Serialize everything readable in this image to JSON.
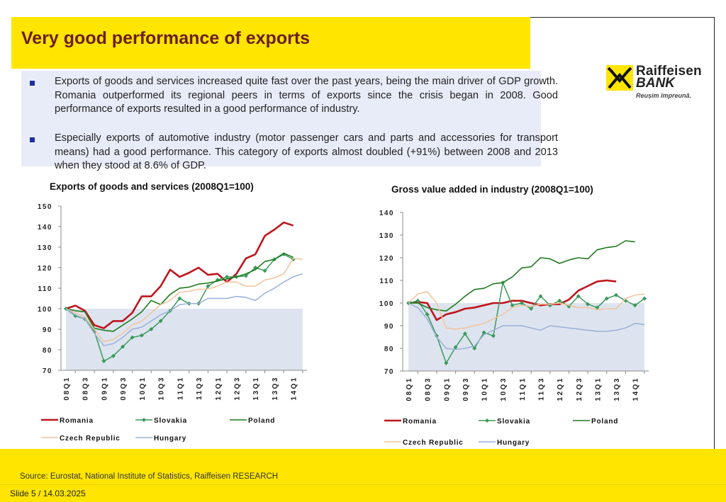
{
  "title": "Very good performance of exports",
  "bullets": [
    "Exports of goods and services increased quite fast over the past years, being the main driver of GDP growth. Romania outperformed its regional peers in terms of exports since the crisis began in 2008. Good performance of exports resulted in a good performance of industry.",
    "Especially exports of automotive industry (motor passenger cars and parts and accessories for transport means) had a good performance. This category of exports almost doubled (+91%) between 2008 and 2013 when they stood at 8.6% of GDP."
  ],
  "logo": {
    "line1": "Raiffeisen",
    "line2": "BANK",
    "tagline": "Reușim împreună."
  },
  "footer": {
    "source": "Source: Eurostat, National Institute of Statistics, Raiffeisen RESEARCH",
    "slide": "Slide 5 / 14.03.2025"
  },
  "colors": {
    "Romania": "#c0141c",
    "Slovakia": "#3a9a5a",
    "Poland": "#1f7a1f",
    "Czech Republic": "#f3c39b",
    "Hungary": "#9ab0d8",
    "shade": "#dde4ef",
    "title_bar": "#ffe500"
  },
  "chart_data": [
    {
      "type": "line",
      "title": "Exports of goods and services (2008Q1=100)",
      "xlabel": "",
      "ylabel": "",
      "ylim": [
        70,
        150
      ],
      "yticks": [
        "150",
        "140",
        "130",
        "120",
        "110",
        "100",
        "90",
        "80",
        "70"
      ],
      "x": [
        "08Q1",
        "08Q2",
        "08Q3",
        "08Q4",
        "09Q1",
        "09Q2",
        "09Q3",
        "09Q4",
        "10Q1",
        "10Q2",
        "10Q3",
        "10Q4",
        "11Q1",
        "11Q2",
        "11Q3",
        "11Q4",
        "12Q1",
        "12Q2",
        "12Q3",
        "12Q4",
        "13Q1",
        "13Q2",
        "13Q3",
        "13Q4",
        "14Q1",
        "14Q2"
      ],
      "xticks": [
        "08Q1",
        "08Q3",
        "09Q1",
        "09Q3",
        "10Q1",
        "10Q3",
        "11Q1",
        "11Q3",
        "12Q1",
        "12Q3",
        "13Q1",
        "13Q3",
        "14Q1"
      ],
      "shade_value": 100,
      "legend_rows": [
        [
          "Romania",
          "Slovakia",
          "Poland"
        ],
        [
          "Czech Republic",
          "Hungary"
        ]
      ],
      "series": [
        {
          "name": "Romania",
          "values": [
            100,
            101.5,
            99,
            92,
            90.5,
            94,
            94,
            98,
            106,
            106,
            111,
            119,
            115.5,
            117.5,
            120,
            116.5,
            117,
            113,
            117,
            124.5,
            126.5,
            135.5,
            138.5,
            142,
            140.5,
            null
          ]
        },
        {
          "name": "Slovakia",
          "marker": true,
          "values": [
            100,
            96.5,
            95,
            89,
            74.5,
            77,
            81.5,
            86,
            87,
            90,
            94,
            99,
            105,
            102.5,
            102.5,
            111,
            114,
            115.5,
            115.5,
            116,
            120,
            118.5,
            124,
            126.5,
            124,
            null
          ]
        },
        {
          "name": "Poland",
          "values": [
            100,
            99,
            98.5,
            90.5,
            89.5,
            89,
            92,
            95,
            98.5,
            104,
            102,
            107,
            110,
            110.5,
            112,
            112.5,
            113.5,
            114.5,
            115.5,
            117,
            119,
            123,
            124,
            127,
            125,
            null
          ]
        },
        {
          "name": "Czech Republic",
          "values": [
            100,
            98,
            96,
            90,
            84,
            85,
            88,
            92,
            94,
            98,
            102,
            104,
            108,
            108.5,
            109.5,
            109.5,
            111,
            113,
            113,
            111,
            111,
            114,
            115,
            117,
            124.5,
            124
          ]
        },
        {
          "name": "Hungary",
          "values": [
            100,
            97,
            95,
            88,
            82,
            83,
            86,
            90,
            91,
            94,
            97,
            99,
            102,
            102.5,
            102.5,
            105,
            105,
            105,
            106,
            105.5,
            104,
            107.5,
            110,
            113,
            115.5,
            117
          ]
        }
      ]
    },
    {
      "type": "line",
      "title": "Gross value added in industry (2008Q1=100)",
      "xlabel": "",
      "ylabel": "",
      "ylim": [
        70,
        140
      ],
      "yticks": [
        "140",
        "130",
        "120",
        "110",
        "100",
        "90",
        "80",
        "70"
      ],
      "x": [
        "08Q1",
        "08Q2",
        "08Q3",
        "08Q4",
        "09Q1",
        "09Q2",
        "09Q3",
        "09Q4",
        "10Q1",
        "10Q2",
        "10Q3",
        "10Q4",
        "11Q1",
        "11Q2",
        "11Q3",
        "11Q4",
        "12Q1",
        "12Q2",
        "12Q3",
        "12Q4",
        "13Q1",
        "13Q2",
        "13Q3",
        "13Q4",
        "14Q1",
        "14Q2"
      ],
      "xticks": [
        "08Q1",
        "08Q3",
        "09Q1",
        "09Q3",
        "10Q1",
        "10Q3",
        "11Q1",
        "11Q3",
        "12Q1",
        "12Q3",
        "13Q1",
        "13Q3",
        "14Q1"
      ],
      "shade_value": 100,
      "legend_rows": [
        [
          "Romania",
          "Slovakia",
          "Poland"
        ],
        [
          "Czech Republic",
          "Hungary"
        ]
      ],
      "series": [
        {
          "name": "Romania",
          "values": [
            100,
            100.5,
            100,
            92.5,
            95,
            96,
            97.5,
            98,
            99,
            100,
            100,
            101,
            101,
            100,
            99,
            99.5,
            99.5,
            101.5,
            105.5,
            107.5,
            109.5,
            110,
            109.5,
            null,
            null,
            null
          ]
        },
        {
          "name": "Slovakia",
          "marker": true,
          "values": [
            100,
            101,
            95,
            85.5,
            73.5,
            80.5,
            86.5,
            80,
            87,
            85.5,
            109,
            99,
            100,
            97.5,
            103,
            99,
            101,
            98.5,
            103,
            99.5,
            98,
            102,
            103.5,
            101,
            99,
            102
          ]
        },
        {
          "name": "Poland",
          "values": [
            100,
            100,
            98,
            97,
            96.5,
            99.5,
            103,
            106,
            106.5,
            108.5,
            109,
            111.5,
            115.5,
            116,
            120,
            119.5,
            117.5,
            119,
            120,
            119.5,
            123.5,
            124.5,
            125,
            127.5,
            127,
            null
          ]
        },
        {
          "name": "Czech Republic",
          "values": [
            100,
            104,
            105,
            100,
            89,
            88.5,
            89,
            90,
            91,
            93,
            95,
            98,
            99,
            98.5,
            99.5,
            99.5,
            100,
            99,
            98,
            98,
            97,
            97.5,
            97.5,
            102,
            103.5,
            104
          ]
        },
        {
          "name": "Hungary",
          "values": [
            100,
            98,
            93,
            85,
            80,
            79.5,
            80,
            81,
            86,
            88,
            90,
            90,
            90,
            89,
            88,
            90,
            89.5,
            89,
            88.5,
            88,
            87.5,
            87.5,
            88,
            89,
            91,
            90.5
          ]
        }
      ]
    }
  ]
}
